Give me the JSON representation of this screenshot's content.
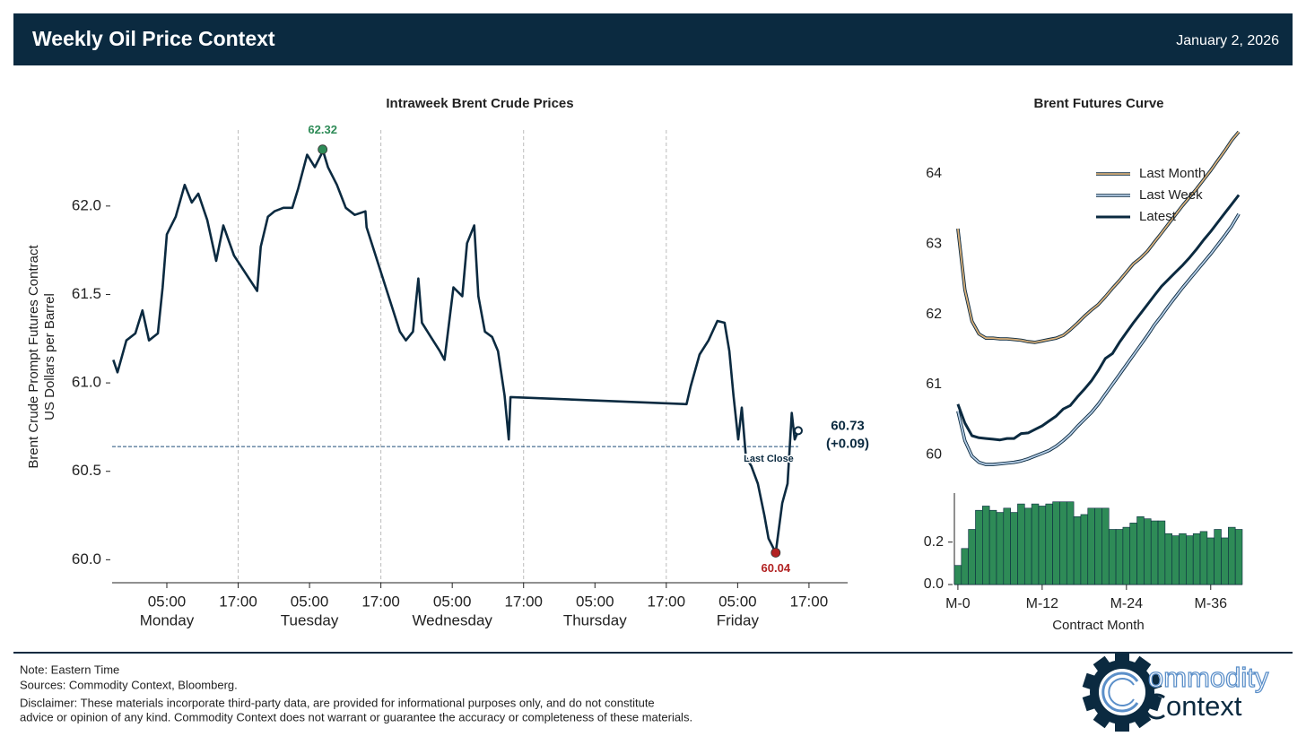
{
  "header": {
    "title": "Weekly Oil Price Context",
    "date": "January 2, 2026"
  },
  "chart_data": [
    {
      "type": "line",
      "title": "Intraweek Brent Crude Prices",
      "ylabel": [
        "Brent Crude Prompt Futures Contract",
        "US Dollars per Barrel"
      ],
      "color": "#0b2a40",
      "x": [
        -4.0,
        -3.3,
        -1.8,
        -0.3,
        0.9,
        2.0,
        3.5,
        4.3,
        5.0,
        6.5,
        8.0,
        9.2,
        10.3,
        11.8,
        13.3,
        14.5,
        16.3,
        20.2,
        20.8,
        22.0,
        23.1,
        24.6,
        26.1,
        27.1,
        28.6,
        29.9,
        31.1,
        31.2,
        32.1,
        33.6,
        35.1,
        36.6,
        38.4,
        38.6,
        44.2,
        45.2,
        46.4,
        47.3,
        47.9,
        49.4,
        50.9,
        51.7,
        53.2,
        54.7,
        55.5,
        56.7,
        57.4,
        58.5,
        59.7,
        60.7,
        61.8,
        62.5,
        62.8,
        92.4,
        93.1,
        94.6,
        96.1,
        97.6,
        98.8,
        99.6,
        100.3,
        101.1,
        101.7,
        102.4,
        103.3,
        104.4,
        105.5,
        106.2,
        107.4,
        108.5,
        109.4,
        110.1,
        110.6,
        111.2
      ],
      "values": [
        61.13,
        61.06,
        61.24,
        61.28,
        61.41,
        61.24,
        61.28,
        61.54,
        61.84,
        61.94,
        62.12,
        62.02,
        62.07,
        61.92,
        61.69,
        61.89,
        61.72,
        61.52,
        61.77,
        61.94,
        61.97,
        61.99,
        61.99,
        62.1,
        62.29,
        62.22,
        62.3,
        62.32,
        62.22,
        62.12,
        61.99,
        61.95,
        61.97,
        61.88,
        61.29,
        61.24,
        61.29,
        61.59,
        61.34,
        61.26,
        61.18,
        61.13,
        61.54,
        61.49,
        61.79,
        61.89,
        61.49,
        61.29,
        61.26,
        61.18,
        60.93,
        60.68,
        60.92,
        60.88,
        60.98,
        61.16,
        61.24,
        61.35,
        61.34,
        61.18,
        60.93,
        60.68,
        60.86,
        60.58,
        60.53,
        60.43,
        60.25,
        60.12,
        60.04,
        60.32,
        60.43,
        60.83,
        60.68,
        60.73
      ],
      "xlim": [
        -4.2,
        119.5
      ],
      "ylim": [
        59.87,
        62.43
      ],
      "yticks": [
        {
          "value": 60,
          "label": "60.0"
        },
        60.5,
        {
          "value": 61,
          "label": "61.0"
        },
        61.5,
        {
          "value": 62,
          "label": "62.0"
        }
      ],
      "xticks": [
        {
          "value": 5,
          "label": "05:00"
        },
        {
          "value": 17,
          "label": "17:00"
        },
        {
          "value": 29,
          "label": "05:00"
        },
        {
          "value": 41,
          "label": "17:00"
        },
        {
          "value": 53,
          "label": "05:00"
        },
        {
          "value": 65,
          "label": "17:00"
        },
        {
          "value": 77,
          "label": "05:00"
        },
        {
          "value": 89,
          "label": "17:00"
        },
        {
          "value": 101,
          "label": "05:00"
        },
        {
          "value": 113,
          "label": "17:00"
        }
      ],
      "xtick_days": [
        "Monday",
        null,
        "Tuesday",
        null,
        "Wednesday",
        null,
        "Thursday",
        null,
        "Friday",
        null
      ],
      "session_breaks": [
        17,
        41,
        65,
        89
      ],
      "peak": {
        "x": 31.2,
        "value": 62.32,
        "color": "#2e8b57"
      },
      "low": {
        "x": 107.4,
        "value": 60.04,
        "color": "#b22222"
      },
      "last_close": {
        "value": 60.64,
        "label": "Last Close"
      },
      "last_change": "(+0.09)"
    },
    {
      "type": "line",
      "title": "Brent Futures Curve",
      "legend": "upper right",
      "x": [
        0,
        1,
        2,
        3,
        4,
        5,
        6,
        7,
        8,
        9,
        10,
        11,
        12,
        13,
        14,
        15,
        16,
        17,
        18,
        19,
        20,
        21,
        22,
        23,
        24,
        25,
        26,
        27,
        28,
        29,
        30,
        31,
        32,
        33,
        34,
        35,
        36,
        37,
        38,
        39,
        40
      ],
      "series": [
        {
          "name": "Last Month",
          "color": "#d9b07a",
          "edgecolor": "#0b2a40",
          "values": [
            63.22,
            62.35,
            61.9,
            61.72,
            61.66,
            61.66,
            61.65,
            61.65,
            61.64,
            61.63,
            61.61,
            61.6,
            61.62,
            61.64,
            61.66,
            61.7,
            61.78,
            61.87,
            61.97,
            62.06,
            62.14,
            62.25,
            62.37,
            62.48,
            62.6,
            62.72,
            62.8,
            62.9,
            63.03,
            63.16,
            63.29,
            63.42,
            63.55,
            63.67,
            63.79,
            63.92,
            64.05,
            64.19,
            64.33,
            64.48,
            64.6
          ]
        },
        {
          "name": "Last Week",
          "color": "#b5cde6",
          "edgecolor": "#0b2a40",
          "values": [
            60.62,
            60.2,
            59.98,
            59.89,
            59.86,
            59.86,
            59.87,
            59.88,
            59.89,
            59.91,
            59.94,
            59.98,
            60.02,
            60.06,
            60.12,
            60.2,
            60.29,
            60.4,
            60.5,
            60.6,
            60.72,
            60.86,
            61.0,
            61.14,
            61.28,
            61.42,
            61.56,
            61.7,
            61.85,
            61.98,
            62.12,
            62.25,
            62.38,
            62.5,
            62.62,
            62.74,
            62.86,
            62.99,
            63.12,
            63.26,
            63.43
          ]
        },
        {
          "name": "Latest",
          "color": "#0b2a40",
          "values": [
            60.72,
            60.45,
            60.27,
            60.24,
            60.23,
            60.22,
            60.21,
            60.23,
            60.23,
            60.3,
            60.31,
            60.36,
            60.41,
            60.48,
            60.55,
            60.65,
            60.7,
            60.82,
            60.93,
            61.05,
            61.2,
            61.37,
            61.44,
            61.6,
            61.74,
            61.88,
            62.01,
            62.14,
            62.27,
            62.4,
            62.5,
            62.6,
            62.7,
            62.81,
            62.93,
            63.06,
            63.18,
            63.31,
            63.44,
            63.57,
            63.7
          ]
        }
      ],
      "xlim": [
        -0.5,
        40.5
      ],
      "ylim": [
        59.58,
        64.69
      ],
      "yticks": [
        60,
        61,
        62,
        63,
        64
      ]
    },
    {
      "type": "bar",
      "color": "#2e8b57",
      "edgecolor": "#0b2a40",
      "xlabel": "Contract Month",
      "x": [
        0,
        1,
        2,
        3,
        4,
        5,
        6,
        7,
        8,
        9,
        10,
        11,
        12,
        13,
        14,
        15,
        16,
        17,
        18,
        19,
        20,
        21,
        22,
        23,
        24,
        25,
        26,
        27,
        28,
        29,
        30,
        31,
        32,
        33,
        34,
        35,
        36,
        37,
        38,
        39,
        40
      ],
      "values": [
        0.09,
        0.17,
        0.26,
        0.35,
        0.37,
        0.35,
        0.34,
        0.36,
        0.34,
        0.38,
        0.36,
        0.38,
        0.37,
        0.38,
        0.39,
        0.39,
        0.39,
        0.32,
        0.33,
        0.36,
        0.36,
        0.36,
        0.26,
        0.26,
        0.27,
        0.29,
        0.32,
        0.31,
        0.3,
        0.3,
        0.24,
        0.23,
        0.24,
        0.23,
        0.24,
        0.25,
        0.22,
        0.26,
        0.22,
        0.27,
        0.26
      ],
      "xlim": [
        -0.5,
        40.5
      ],
      "ylim": [
        0,
        0.41
      ],
      "yticks": [
        {
          "value": 0,
          "label": "0.0"
        },
        0.2
      ],
      "xticks": [
        {
          "value": 0,
          "label": "M-0"
        },
        {
          "value": 12,
          "label": "M-12"
        },
        {
          "value": 24,
          "label": "M-24"
        },
        {
          "value": 36,
          "label": "M-36"
        }
      ]
    }
  ],
  "footer": {
    "note": "Note: Eastern Time",
    "sources": "Sources: Commodity Context, Bloomberg.",
    "disclaimer": [
      "Disclaimer: These materials incorporate third-party data, are provided for informational purposes only, and do not constitute",
      "advice or opinion of any kind. Commodity Context does not warrant or guarantee the accuracy or completeness of these materials."
    ]
  },
  "logo": {
    "line1": "ommodity",
    "line2": "ontext"
  }
}
